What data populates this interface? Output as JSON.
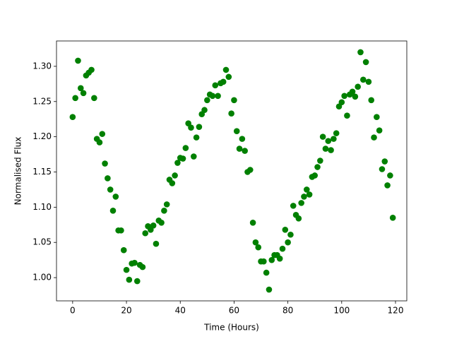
{
  "chart_data": {
    "type": "scatter",
    "x_label": "Time (Hours)",
    "y_label": "Normalised Flux",
    "series": [
      {
        "color": "#008000",
        "x": [
          0,
          1,
          2,
          3,
          4,
          5,
          6,
          7,
          8,
          9,
          10,
          11,
          12,
          13,
          14,
          15,
          16,
          17,
          18,
          19,
          20,
          21,
          22,
          23,
          24,
          25,
          26,
          27,
          28,
          29,
          30,
          31,
          32,
          33,
          34,
          35,
          36,
          37,
          38,
          39,
          40,
          41,
          42,
          43,
          44,
          45,
          46,
          47,
          48,
          49,
          50,
          51,
          52,
          53,
          54,
          55,
          56,
          57,
          58,
          59,
          60,
          61,
          62,
          63,
          64,
          65,
          66,
          67,
          68,
          69,
          70,
          71,
          72,
          73,
          74,
          75,
          76,
          77,
          78,
          79,
          80,
          81,
          82,
          83,
          84,
          85,
          86,
          87,
          88,
          89,
          90,
          91,
          92,
          93,
          94,
          95,
          96,
          97,
          98,
          99,
          100,
          101,
          102,
          103,
          104,
          105,
          106,
          107,
          108,
          109,
          110,
          111,
          112,
          113,
          114,
          115,
          116,
          117,
          118,
          119
        ],
        "values": [
          1.228,
          1.255,
          1.308,
          1.269,
          1.262,
          1.287,
          1.291,
          1.295,
          1.255,
          1.197,
          1.192,
          1.204,
          1.162,
          1.141,
          1.125,
          1.095,
          1.115,
          1.067,
          1.067,
          1.039,
          1.011,
          0.997,
          1.02,
          1.021,
          0.995,
          1.018,
          1.015,
          1.063,
          1.073,
          1.068,
          1.074,
          1.048,
          1.081,
          1.078,
          1.095,
          1.104,
          1.139,
          1.134,
          1.145,
          1.163,
          1.17,
          1.169,
          1.184,
          1.219,
          1.213,
          1.172,
          1.199,
          1.214,
          1.232,
          1.238,
          1.252,
          1.26,
          1.258,
          1.273,
          1.258,
          1.276,
          1.278,
          1.295,
          1.285,
          1.233,
          1.252,
          1.208,
          1.183,
          1.197,
          1.18,
          1.15,
          1.153,
          1.078,
          1.05,
          1.043,
          1.023,
          1.023,
          1.007,
          0.983,
          1.025,
          1.032,
          1.032,
          1.027,
          1.041,
          1.068,
          1.05,
          1.061,
          1.102,
          1.089,
          1.084,
          1.106,
          1.115,
          1.125,
          1.118,
          1.143,
          1.145,
          1.157,
          1.166,
          1.2,
          1.183,
          1.194,
          1.181,
          1.197,
          1.205,
          1.243,
          1.249,
          1.258,
          1.23,
          1.26,
          1.264,
          1.257,
          1.271,
          1.32,
          1.281,
          1.306,
          1.278,
          1.252,
          1.199,
          1.228,
          1.209,
          1.154,
          1.165,
          1.131,
          1.145,
          1.085
        ]
      }
    ],
    "xlim": [
      -6,
      124.2
    ],
    "xticks": [
      0,
      20,
      40,
      60,
      80,
      100,
      120
    ],
    "ylim": [
      0.967,
      1.336
    ],
    "yticks": [
      {
        "value": 1.0,
        "label": "1.00"
      },
      {
        "value": 1.05,
        "label": "1.05"
      },
      {
        "value": 1.1,
        "label": "1.10"
      },
      {
        "value": 1.15,
        "label": "1.15"
      },
      {
        "value": 1.2,
        "label": "1.20"
      },
      {
        "value": 1.25,
        "label": "1.25"
      },
      {
        "value": 1.3,
        "label": "1.30"
      }
    ],
    "grid": false
  }
}
